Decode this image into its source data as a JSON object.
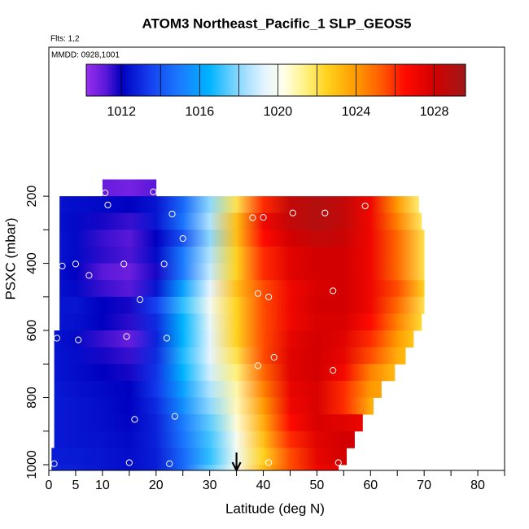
{
  "chart_data": {
    "type": "heatmap",
    "title": "ATOM3 Northeast_Pacific_1 SLP_GEOS5",
    "flights_label": "Flts: 1,2",
    "dates_label": "MMDD: 0928,1001",
    "x_label": "Latitude (deg N)",
    "y_label": "PSXC (mbar)",
    "xlim": [
      0,
      85
    ],
    "xticks": [
      0,
      5,
      10,
      20,
      30,
      40,
      50,
      60,
      70,
      80
    ],
    "xticks_minor": [
      15,
      25,
      35,
      45,
      55,
      65,
      75,
      85
    ],
    "ylim": [
      1017,
      -244
    ],
    "yticks": [
      200,
      400,
      600,
      800,
      1000
    ],
    "yticks_minor": [
      300,
      500,
      700,
      900
    ],
    "colorbar_lim": [
      1010.2,
      1029.6
    ],
    "colorbar_ticks": [
      1012,
      1016,
      1020,
      1024,
      1028
    ],
    "colorbar_divisions": [
      1012,
      1014,
      1016,
      1018,
      1020,
      1022,
      1024,
      1026,
      1028
    ],
    "colorscale": [
      {
        "value": 1010.2,
        "color": "#9a2ef0"
      },
      {
        "value": 1011.2,
        "color": "#5a18d8"
      },
      {
        "value": 1012,
        "color": "#0000c0"
      },
      {
        "value": 1013.5,
        "color": "#1540f0"
      },
      {
        "value": 1015,
        "color": "#1a7cff"
      },
      {
        "value": 1016.5,
        "color": "#00b4ff"
      },
      {
        "value": 1018,
        "color": "#8cd8ff"
      },
      {
        "value": 1019.3,
        "color": "#e4f4ff"
      },
      {
        "value": 1020.3,
        "color": "#ffffe8"
      },
      {
        "value": 1021.5,
        "color": "#fff07a"
      },
      {
        "value": 1022.5,
        "color": "#ffd21e"
      },
      {
        "value": 1024,
        "color": "#ff9a00"
      },
      {
        "value": 1025.3,
        "color": "#ff5a00"
      },
      {
        "value": 1026.5,
        "color": "#ff0a00"
      },
      {
        "value": 1028,
        "color": "#d20000"
      },
      {
        "value": 1029.6,
        "color": "#a01818"
      }
    ],
    "lats": [
      0,
      5,
      10,
      15,
      20,
      25,
      30,
      35,
      40,
      45,
      50,
      55,
      60,
      65,
      70
    ],
    "rows": [
      {
        "p_top": 150,
        "p_bottom": 200,
        "lat_start": 10,
        "lat_end": 20,
        "values": [
          null,
          null,
          1011.0,
          1010.8,
          1011.2,
          null,
          null,
          null,
          null,
          null,
          null,
          null,
          null,
          null,
          null
        ]
      },
      {
        "p_top": 200,
        "p_bottom": 250,
        "lat_start": 2,
        "lat_end": 69,
        "values": [
          1012.5,
          1012.3,
          1012.2,
          1012.0,
          1012.5,
          1014.5,
          1018,
          1022,
          1026,
          1028.5,
          1029,
          1028.5,
          1027,
          1024,
          1021
        ]
      },
      {
        "p_top": 250,
        "p_bottom": 300,
        "lat_start": 2,
        "lat_end": 69.5,
        "values": [
          1012.5,
          1012.2,
          1011.8,
          1011.5,
          1012.5,
          1014.8,
          1018.5,
          1023,
          1027,
          1028.5,
          1029,
          1028.5,
          1027,
          1024.5,
          1021.5
        ]
      },
      {
        "p_top": 300,
        "p_bottom": 350,
        "lat_start": 2,
        "lat_end": 70,
        "values": [
          1012.6,
          1012.2,
          1011.5,
          1011.2,
          1012,
          1014,
          1018,
          1023,
          1026.5,
          1028,
          1028.5,
          1028.3,
          1027,
          1025,
          1022
        ]
      },
      {
        "p_top": 350,
        "p_bottom": 400,
        "lat_start": 2,
        "lat_end": 70,
        "values": [
          1012.6,
          1012.2,
          1011.6,
          1011.3,
          1012.2,
          1015,
          1018.5,
          1022.5,
          1026,
          1027.5,
          1028,
          1028,
          1027,
          1025,
          1022
        ]
      },
      {
        "p_top": 400,
        "p_bottom": 450,
        "lat_start": 2,
        "lat_end": 70.5,
        "values": [
          1012.5,
          1012,
          1011.2,
          1010.9,
          1011.8,
          1015,
          1018.8,
          1022.5,
          1026,
          1027.5,
          1028,
          1028,
          1027,
          1025,
          1022
        ]
      },
      {
        "p_top": 450,
        "p_bottom": 500,
        "lat_start": 2,
        "lat_end": 71.5,
        "values": [
          1012.5,
          1012.2,
          1011.5,
          1011.2,
          1012.5,
          1016,
          1019.3,
          1023,
          1025.5,
          1027,
          1027.8,
          1028,
          1027,
          1025.5,
          1022.5
        ]
      },
      {
        "p_top": 500,
        "p_bottom": 550,
        "lat_start": 2,
        "lat_end": 71,
        "values": [
          1012.5,
          1012.5,
          1012,
          1011.8,
          1013.5,
          1017,
          1019.8,
          1022.5,
          1025.5,
          1027,
          1028,
          1028,
          1027,
          1025,
          1022
        ]
      },
      {
        "p_top": 550,
        "p_bottom": 600,
        "lat_start": 2,
        "lat_end": 69.5,
        "values": [
          1012.5,
          1012.4,
          1012,
          1011.6,
          1013,
          1016.5,
          1019.5,
          1022.5,
          1025.5,
          1027,
          1027.8,
          1027.8,
          1026.5,
          1024.5,
          1022
        ]
      },
      {
        "p_top": 600,
        "p_bottom": 650,
        "lat_start": 1,
        "lat_end": 68,
        "values": [
          1012.5,
          1012.2,
          1011.5,
          1011,
          1012.8,
          1016.5,
          1019.3,
          1022.5,
          1025.5,
          1027.3,
          1028,
          1027.5,
          1026,
          1024,
          1022
        ]
      },
      {
        "p_top": 650,
        "p_bottom": 700,
        "lat_start": 1,
        "lat_end": 66.5,
        "values": [
          1012.5,
          1012.3,
          1011.8,
          1011.5,
          1013,
          1016.8,
          1019.3,
          1022,
          1025.5,
          1027.5,
          1028,
          1027.3,
          1025.5,
          1023.5,
          1022.5
        ]
      },
      {
        "p_top": 700,
        "p_bottom": 750,
        "lat_start": 1,
        "lat_end": 64.5,
        "values": [
          1012.5,
          1012.3,
          1012,
          1011.8,
          1013.2,
          1016.5,
          1019,
          1021.5,
          1025,
          1027.5,
          1028,
          1026.8,
          1024.5,
          1023,
          null
        ]
      },
      {
        "p_top": 750,
        "p_bottom": 800,
        "lat_start": 1,
        "lat_end": 62,
        "values": [
          1012.6,
          1012.4,
          1012.2,
          1012,
          1013.3,
          1016,
          1018.5,
          1021,
          1024.5,
          1027.2,
          1027.8,
          1026,
          1024,
          1023.5,
          null
        ]
      },
      {
        "p_top": 800,
        "p_bottom": 850,
        "lat_start": 1,
        "lat_end": 60.5,
        "values": [
          1012.6,
          1012.5,
          1012.3,
          1012,
          1013,
          1015.5,
          1018,
          1020.8,
          1024,
          1027,
          1027.8,
          1026,
          1023.5,
          1023,
          null
        ]
      },
      {
        "p_top": 850,
        "p_bottom": 900,
        "lat_start": 1,
        "lat_end": 58.5,
        "values": [
          1012.6,
          1012.5,
          1012.3,
          1012.1,
          1012.8,
          1015,
          1017.5,
          1020.5,
          1023.5,
          1026.5,
          1027.8,
          1027.5,
          1027,
          null,
          null
        ]
      },
      {
        "p_top": 900,
        "p_bottom": 950,
        "lat_start": 1,
        "lat_end": 57,
        "values": [
          1012.6,
          1012.5,
          1012.4,
          1012.2,
          1012.8,
          1014.8,
          1017.2,
          1020,
          1023,
          1026,
          1027.5,
          1028,
          1028,
          null,
          null
        ]
      },
      {
        "p_top": 950,
        "p_bottom": 1000,
        "lat_start": 0.5,
        "lat_end": 55.5,
        "values": [
          1012.7,
          1012.6,
          1012.5,
          1012.3,
          1012.7,
          1014.5,
          1017,
          1019.8,
          1022.5,
          1025.5,
          1027.3,
          1028,
          1028,
          null,
          null
        ]
      },
      {
        "p_top": 1000,
        "p_bottom": 1015,
        "lat_start": 0.5,
        "lat_end": 54,
        "values": [
          1012.8,
          1012.7,
          1012.5,
          1012.3,
          1012.7,
          1014.5,
          1017.5,
          1020,
          1023,
          1025.5,
          1027,
          1027.5,
          null,
          null,
          null
        ]
      }
    ],
    "points": {
      "x": [
        1,
        10.5,
        19.5,
        11,
        23,
        38,
        40,
        45.5,
        51.5,
        59,
        25,
        2.5,
        5,
        14,
        21.5,
        7.5,
        17,
        39,
        41,
        53,
        1.5,
        5.5,
        14.5,
        22,
        42,
        39,
        53,
        16,
        23.5,
        1,
        15,
        22.5,
        41,
        54
      ],
      "y": [
        203,
        190,
        187,
        226,
        253,
        264,
        263,
        250,
        250,
        229,
        326,
        408,
        402,
        402,
        402,
        436,
        508,
        490,
        500,
        482,
        623,
        628,
        618,
        623,
        680,
        705,
        719,
        865,
        856,
        997,
        994,
        997,
        994,
        994
      ],
      "color": "#ffffff"
    },
    "arrow_x": 35
  }
}
